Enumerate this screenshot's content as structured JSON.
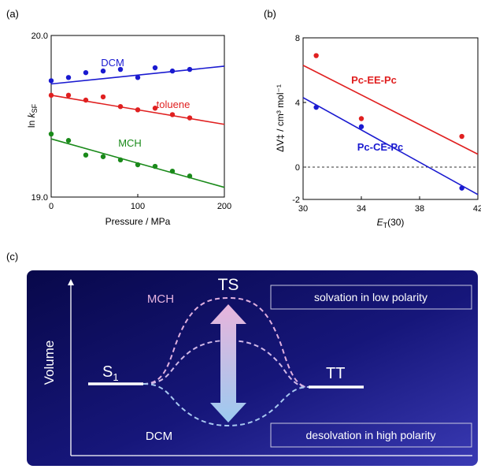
{
  "chart_data": [
    {
      "type": "scatter",
      "panel_label": "(a)",
      "xlabel": "Pressure / MPa",
      "ylabel_main": "ln ",
      "ylabel_k": "k",
      "ylabel_sub": "SF",
      "xlim": [
        0,
        200
      ],
      "ylim": [
        19.0,
        20.0
      ],
      "xticks": [
        0,
        100,
        200
      ],
      "yticks": [
        19.0,
        20.0
      ],
      "xtick_labels": [
        "0",
        "100",
        "200"
      ],
      "ytick_labels": [
        "19.0",
        "20.0"
      ],
      "series": [
        {
          "name": "DCM",
          "color": "#1a1ad0",
          "x": [
            0,
            20,
            40,
            60,
            80,
            100,
            120,
            140,
            160
          ],
          "y": [
            19.72,
            19.74,
            19.77,
            19.78,
            19.79,
            19.74,
            19.8,
            19.78,
            19.79
          ],
          "fit": [
            [
              0,
              19.7
            ],
            [
              200,
              19.81
            ]
          ]
        },
        {
          "name": "toluene",
          "color": "#e02020",
          "x": [
            0,
            20,
            40,
            60,
            80,
            100,
            120,
            140,
            160
          ],
          "y": [
            19.63,
            19.63,
            19.6,
            19.62,
            19.56,
            19.54,
            19.55,
            19.51,
            19.49
          ],
          "fit": [
            [
              0,
              19.63
            ],
            [
              200,
              19.45
            ]
          ]
        },
        {
          "name": "MCH",
          "color": "#1a8a1a",
          "x": [
            0,
            20,
            40,
            60,
            80,
            100,
            120,
            140,
            160
          ],
          "y": [
            19.39,
            19.35,
            19.26,
            19.25,
            19.23,
            19.2,
            19.19,
            19.16,
            19.13
          ],
          "fit": [
            [
              0,
              19.36
            ],
            [
              200,
              19.06
            ]
          ]
        }
      ]
    },
    {
      "type": "scatter",
      "panel_label": "(b)",
      "xlabel_main": "E",
      "xlabel_sub": "T",
      "xlabel_tail": "(30)",
      "ylabel": "ΔV‡ / cm³ mol⁻¹",
      "xlim": [
        30,
        42
      ],
      "ylim": [
        -2,
        8
      ],
      "xticks": [
        30,
        34,
        38,
        42
      ],
      "yticks": [
        -2,
        0,
        4,
        8
      ],
      "xtick_labels": [
        "30",
        "34",
        "38",
        "42"
      ],
      "ytick_labels": [
        "-2",
        "0",
        "4",
        "8"
      ],
      "zero_line": "dashed",
      "series": [
        {
          "name": "Pc-EE-Pc",
          "color": "#e02020",
          "x": [
            30.9,
            34.0,
            40.9
          ],
          "y": [
            6.9,
            3.0,
            1.9
          ],
          "fit": [
            [
              30,
              6.3
            ],
            [
              42,
              0.8
            ]
          ]
        },
        {
          "name": "Pc-CE-Pc",
          "color": "#1a1ad0",
          "x": [
            30.9,
            34.0,
            40.9
          ],
          "y": [
            3.7,
            2.5,
            -1.3
          ],
          "fit": [
            [
              30,
              4.3
            ],
            [
              42,
              -1.7
            ]
          ]
        }
      ]
    }
  ],
  "diagram": {
    "panel_label": "(c)",
    "y_axis_label": "Volume",
    "state_left": "S",
    "state_left_sub": "1",
    "state_right": "TT",
    "transition_state": "TS",
    "solvent_top": "MCH",
    "solvent_bottom": "DCM",
    "box_top": "solvation in low polarity",
    "box_bottom": "desolvation in high polarity",
    "colors": {
      "background_dark": "#0a0a5a",
      "background_light": "#3232a8",
      "mch_curve": "#e0b0e0",
      "dcm_curve": "#a8c8f0"
    }
  }
}
